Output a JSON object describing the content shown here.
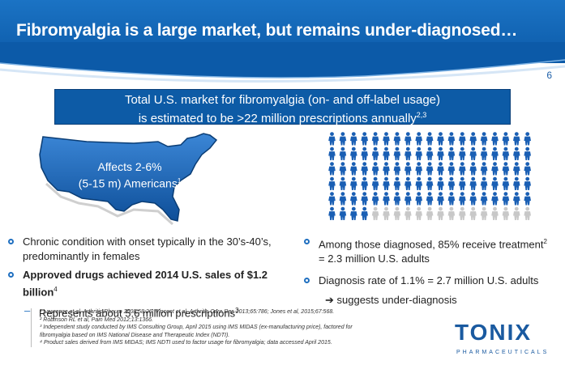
{
  "header": {
    "title": "Fibromyalgia is a large market, but remains under-diagnosed…"
  },
  "page_number": "6",
  "banner": {
    "line1": "Total U.S. market for fibromyalgia (on- and off-label usage)",
    "line2": "is estimated to be  >22 million prescriptions annually",
    "line2_sup": "2,3"
  },
  "map": {
    "line1": "Affects 2-6%",
    "line2": "(5-15 m) Americans",
    "sup": "1"
  },
  "people_graphic": {
    "rows": 6,
    "cols": 19,
    "filled_rows_full": 5,
    "last_row_filled": 4,
    "filled_color": "#1a5fb4",
    "empty_color": "#c8c8c8"
  },
  "left_bullets": {
    "b1": "Chronic condition with onset typically in the 30’s-40’s, predominantly in females",
    "b2": "Approved drugs achieved 2014 U.S. sales of $1.2 billion",
    "b2_sup": "4",
    "sub1": "Represents about 5.6 million prescriptions",
    "sub1_sup": "3"
  },
  "right_bullets": {
    "b1_line1": "Among those diagnosed, 85% receive treatment",
    "b1_sup": "2",
    "b1_line2": "= 2.3 million U.S. adults",
    "b2": "Diagnosis rate of 1.1% = 2.7 million U.S. adults",
    "b2_arrow": "➔ suggests under-diagnosis"
  },
  "footnotes": [
    "¹ Lawrence et al, Arthritis Rheum 2008;58:26; Vincent et al, Arthritis Care Res 2013;65:786; Jones et al, 2015;67:568.",
    "² Robinson RL et al, Pain Med 2012;13:1366.",
    "³ Independent study conducted by IMS Consulting Group, April 2015 using IMS MIDAS (ex-manufacturing price), factored for",
    "fibromyalgia based on IMS National Disease and Therapeutic Index (NDTI).",
    "⁴ Product sales derived from IMS MIDAS; IMS NDTI used to factor usage for fibromyalgia; data accessed April 2015."
  ],
  "logo": {
    "name": "TONIX",
    "sub": "PHARMACEUTICALS"
  }
}
